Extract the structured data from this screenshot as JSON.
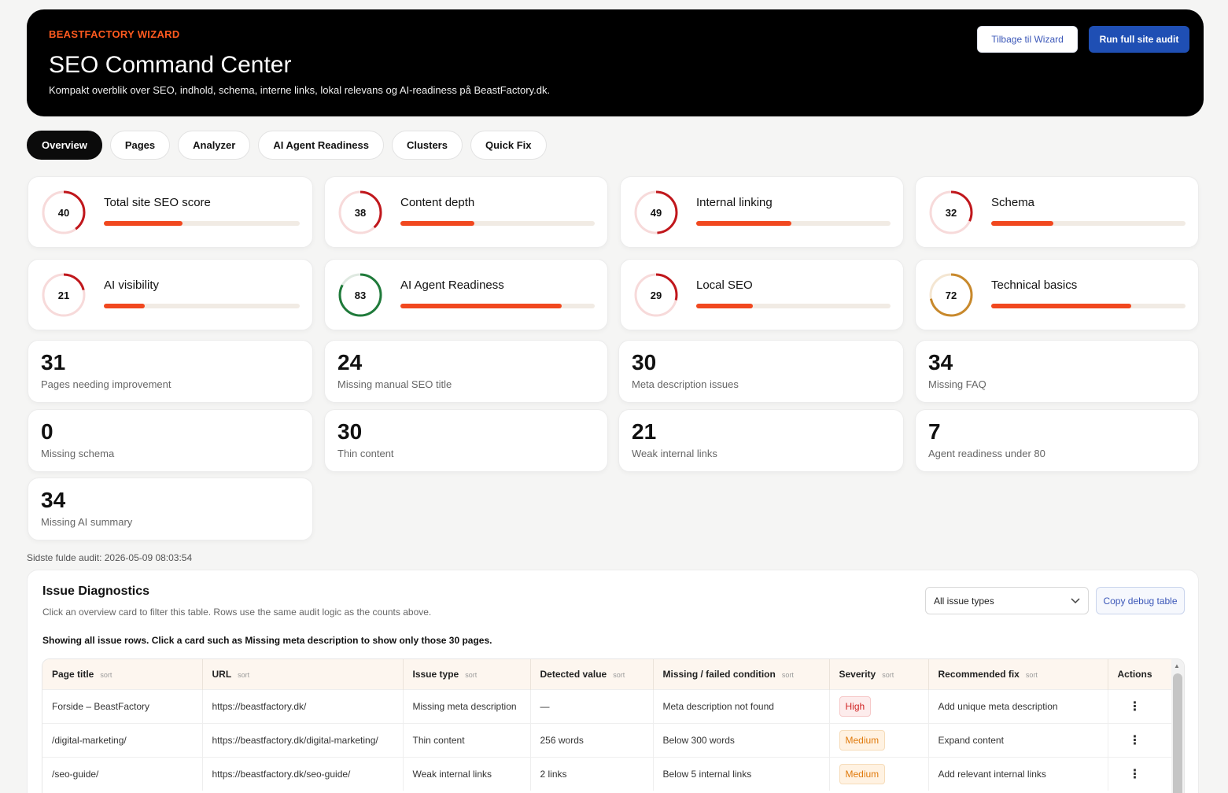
{
  "header": {
    "kicker": "BEASTFACTORY WIZARD",
    "title": "SEO Command Center",
    "subtitle": "Kompakt overblik over SEO, indhold, schema, interne links, lokal relevans og AI-readiness på BeastFactory.dk.",
    "back_label": "Tilbage til Wizard",
    "run_label": "Run full site audit"
  },
  "tabs": [
    {
      "label": "Overview",
      "active": true
    },
    {
      "label": "Pages"
    },
    {
      "label": "Analyzer"
    },
    {
      "label": "AI Agent Readiness"
    },
    {
      "label": "Clusters"
    },
    {
      "label": "Quick Fix"
    }
  ],
  "scores": [
    {
      "label": "Total site SEO score",
      "value": "40",
      "pct": 40,
      "color": "#c0171c"
    },
    {
      "label": "Content depth",
      "value": "38",
      "pct": 38,
      "color": "#c0171c"
    },
    {
      "label": "Internal linking",
      "value": "49",
      "pct": 49,
      "color": "#c0171c"
    },
    {
      "label": "Schema",
      "value": "32",
      "pct": 32,
      "color": "#c0171c"
    },
    {
      "label": "AI visibility",
      "value": "21",
      "pct": 21,
      "color": "#c0171c"
    },
    {
      "label": "AI Agent Readiness",
      "value": "83",
      "pct": 83,
      "color": "#1f7a3a"
    },
    {
      "label": "Local SEO",
      "value": "29",
      "pct": 29,
      "color": "#c0171c"
    },
    {
      "label": "Technical basics",
      "value": "72",
      "pct": 72,
      "color": "#c8892c"
    }
  ],
  "stats": [
    {
      "value": "31",
      "label": "Pages needing improvement"
    },
    {
      "value": "24",
      "label": "Missing manual SEO title"
    },
    {
      "value": "30",
      "label": "Meta description issues"
    },
    {
      "value": "34",
      "label": "Missing FAQ"
    },
    {
      "value": "0",
      "label": "Missing schema"
    },
    {
      "value": "30",
      "label": "Thin content"
    },
    {
      "value": "21",
      "label": "Weak internal links"
    },
    {
      "value": "7",
      "label": "Agent readiness under 80"
    },
    {
      "value": "34",
      "label": "Missing AI summary"
    }
  ],
  "audit_line": "Sidste fulde audit: 2026-05-09 08:03:54",
  "diagnostics": {
    "title": "Issue Diagnostics",
    "subtitle": "Click an overview card to filter this table. Rows use the same audit logic as the counts above.",
    "note": "Showing all issue rows. Click a card such as Missing meta description to show only those 30 pages.",
    "filter_value": "All issue types",
    "copy_label": "Copy debug table",
    "columns": [
      {
        "label": "Page title",
        "sort": "sort"
      },
      {
        "label": "URL",
        "sort": "sort"
      },
      {
        "label": "Issue type",
        "sort": "sort"
      },
      {
        "label": "Detected value",
        "sort": "sort"
      },
      {
        "label": "Missing / failed condition",
        "sort": "sort"
      },
      {
        "label": "Severity",
        "sort": "sort"
      },
      {
        "label": "Recommended fix",
        "sort": "sort"
      },
      {
        "label": "Actions",
        "sort": ""
      }
    ],
    "rows": [
      {
        "title": "Forside – BeastFactory",
        "url": "https://beastfactory.dk/",
        "issue": "Missing meta description",
        "detected": "—",
        "condition": "Meta description not found",
        "severity": "High",
        "fix": "Add unique meta description",
        "action": "⋮"
      },
      {
        "title": "/digital-marketing/",
        "url": "https://beastfactory.dk/digital-marketing/",
        "issue": "Thin content",
        "detected": "256 words",
        "condition": "Below 300 words",
        "severity": "Medium",
        "fix": "Expand content",
        "action": "⋮"
      },
      {
        "title": "/seo-guide/",
        "url": "https://beastfactory.dk/seo-guide/",
        "issue": "Weak internal links",
        "detected": "2 links",
        "condition": "Below 5 internal links",
        "severity": "Medium",
        "fix": "Add relevant internal links",
        "action": "⋮"
      }
    ]
  }
}
